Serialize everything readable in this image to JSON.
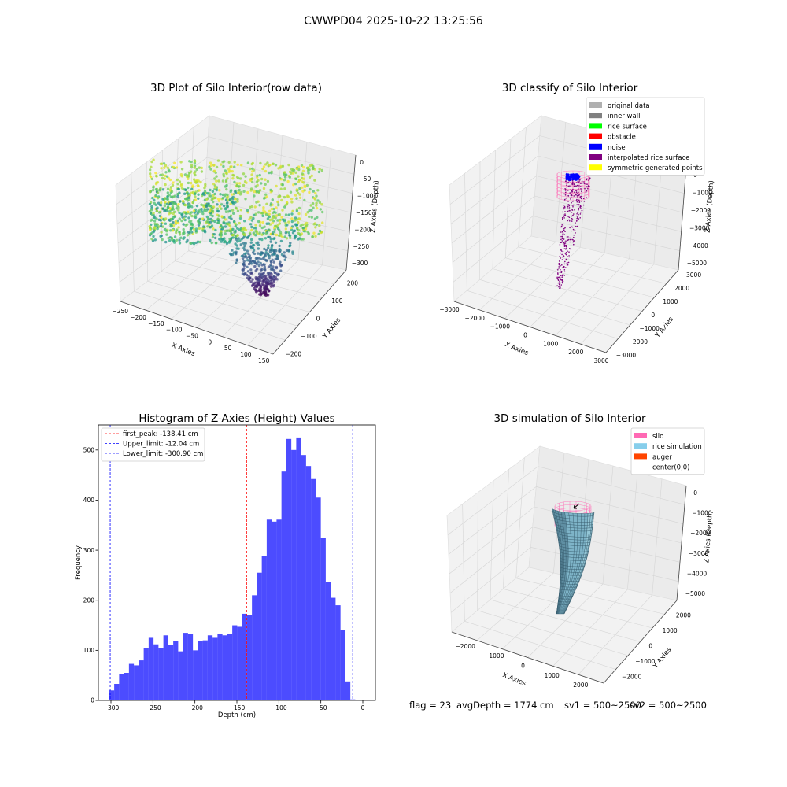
{
  "figure": {
    "suptitle": "CWWPD04 2025-10-22 13:25:56",
    "footer": [
      "flag = 23",
      "avgDepth = 1774 cm",
      "sv1 = 500~2500",
      "sv2 = 500~2500"
    ]
  },
  "chart_data": [
    {
      "type": "scatter3d",
      "title": "3D Plot of Silo Interior(row data)",
      "xlabel": "X Axies",
      "ylabel": "Y Axies",
      "zlabel": "Z Axies (Depth)",
      "xlim": [
        -250,
        150
      ],
      "ylim": [
        -200,
        200
      ],
      "zlim": [
        -300,
        0
      ],
      "xticks": [
        -250,
        -200,
        -150,
        -100,
        -50,
        0,
        50,
        100,
        150
      ],
      "yticks": [
        -200,
        -100,
        0,
        100,
        200
      ],
      "zticks": [
        0,
        -50,
        -100,
        -150,
        -200,
        -250,
        -300
      ],
      "colormap": "viridis",
      "grid": true
    },
    {
      "type": "scatter3d",
      "title": "3D classify of Silo Interior",
      "xlabel": "X Axies",
      "ylabel": "Y Axies",
      "zlabel": "Z Axies (Depth)",
      "xticks": [
        -3000,
        -2000,
        -1000,
        0,
        1000,
        2000,
        3000
      ],
      "yticks": [
        -3000,
        -2000,
        -1000,
        0,
        1000,
        2000,
        3000
      ],
      "zticks": [
        0,
        -1000,
        -2000,
        -3000,
        -4000,
        -5000
      ],
      "legend_position": "top-right",
      "legend": [
        {
          "label": "original data",
          "color": "#b0b0b0"
        },
        {
          "label": "inner wall",
          "color": "#808080"
        },
        {
          "label": "rice surface",
          "color": "#00ff00"
        },
        {
          "label": "obstacle",
          "color": "#ff0000"
        },
        {
          "label": "noise",
          "color": "#0000ff"
        },
        {
          "label": "interpolated rice surface",
          "color": "#800080"
        },
        {
          "label": "symmetric generated points",
          "color": "#ffff00"
        }
      ],
      "grid": true
    },
    {
      "type": "histogram",
      "title": "Histogram of Z-Axies (Height) Values",
      "xlabel": "Depth (cm)",
      "ylabel": "Frequency",
      "xlim": [
        -315,
        15
      ],
      "ylim": [
        0,
        550
      ],
      "xticks": [
        -300,
        -250,
        -200,
        -150,
        -100,
        -50,
        0
      ],
      "yticks": [
        0,
        100,
        200,
        300,
        400,
        500
      ],
      "bin_start": -302,
      "bin_width": 5.86,
      "values": [
        20,
        33,
        53,
        55,
        73,
        70,
        80,
        105,
        125,
        112,
        105,
        130,
        110,
        118,
        98,
        135,
        133,
        100,
        118,
        120,
        130,
        125,
        133,
        130,
        132,
        150,
        147,
        173,
        170,
        210,
        255,
        288,
        361,
        357,
        361,
        457,
        522,
        500,
        525,
        490,
        468,
        442,
        405,
        325,
        237,
        205,
        190,
        141,
        38,
        2
      ],
      "bar_color": "#0000ff",
      "legend_position": "top-left",
      "lines": [
        {
          "label": "first_peak: -138.41 cm",
          "x": -138.41,
          "color": "#ff0000"
        },
        {
          "label": "Upper_limit: -12.04 cm",
          "x": -12.04,
          "color": "#0000ff"
        },
        {
          "label": "Lower_limit: -300.90 cm",
          "x": -300.9,
          "color": "#0000ff"
        }
      ],
      "grid": false
    },
    {
      "type": "surface3d",
      "title": "3D simulation of Silo Interior",
      "xlabel": "X Axies",
      "ylabel": "Y Axies",
      "zlabel": "Z Axies (Depth)",
      "xticks": [
        -2000,
        -1000,
        0,
        1000,
        2000
      ],
      "yticks": [
        -2000,
        -1000,
        0,
        1000,
        2000
      ],
      "zticks": [
        0,
        -1000,
        -2000,
        -3000,
        -4000,
        -5000
      ],
      "legend_position": "top-right",
      "legend": [
        {
          "label": "silo",
          "color": "#ff69b4"
        },
        {
          "label": "rice simulation",
          "color": "#87ceeb"
        },
        {
          "label": "auger",
          "color": "#ff4500"
        },
        {
          "label": "center(0,0)",
          "color": ""
        }
      ],
      "grid": true
    }
  ]
}
